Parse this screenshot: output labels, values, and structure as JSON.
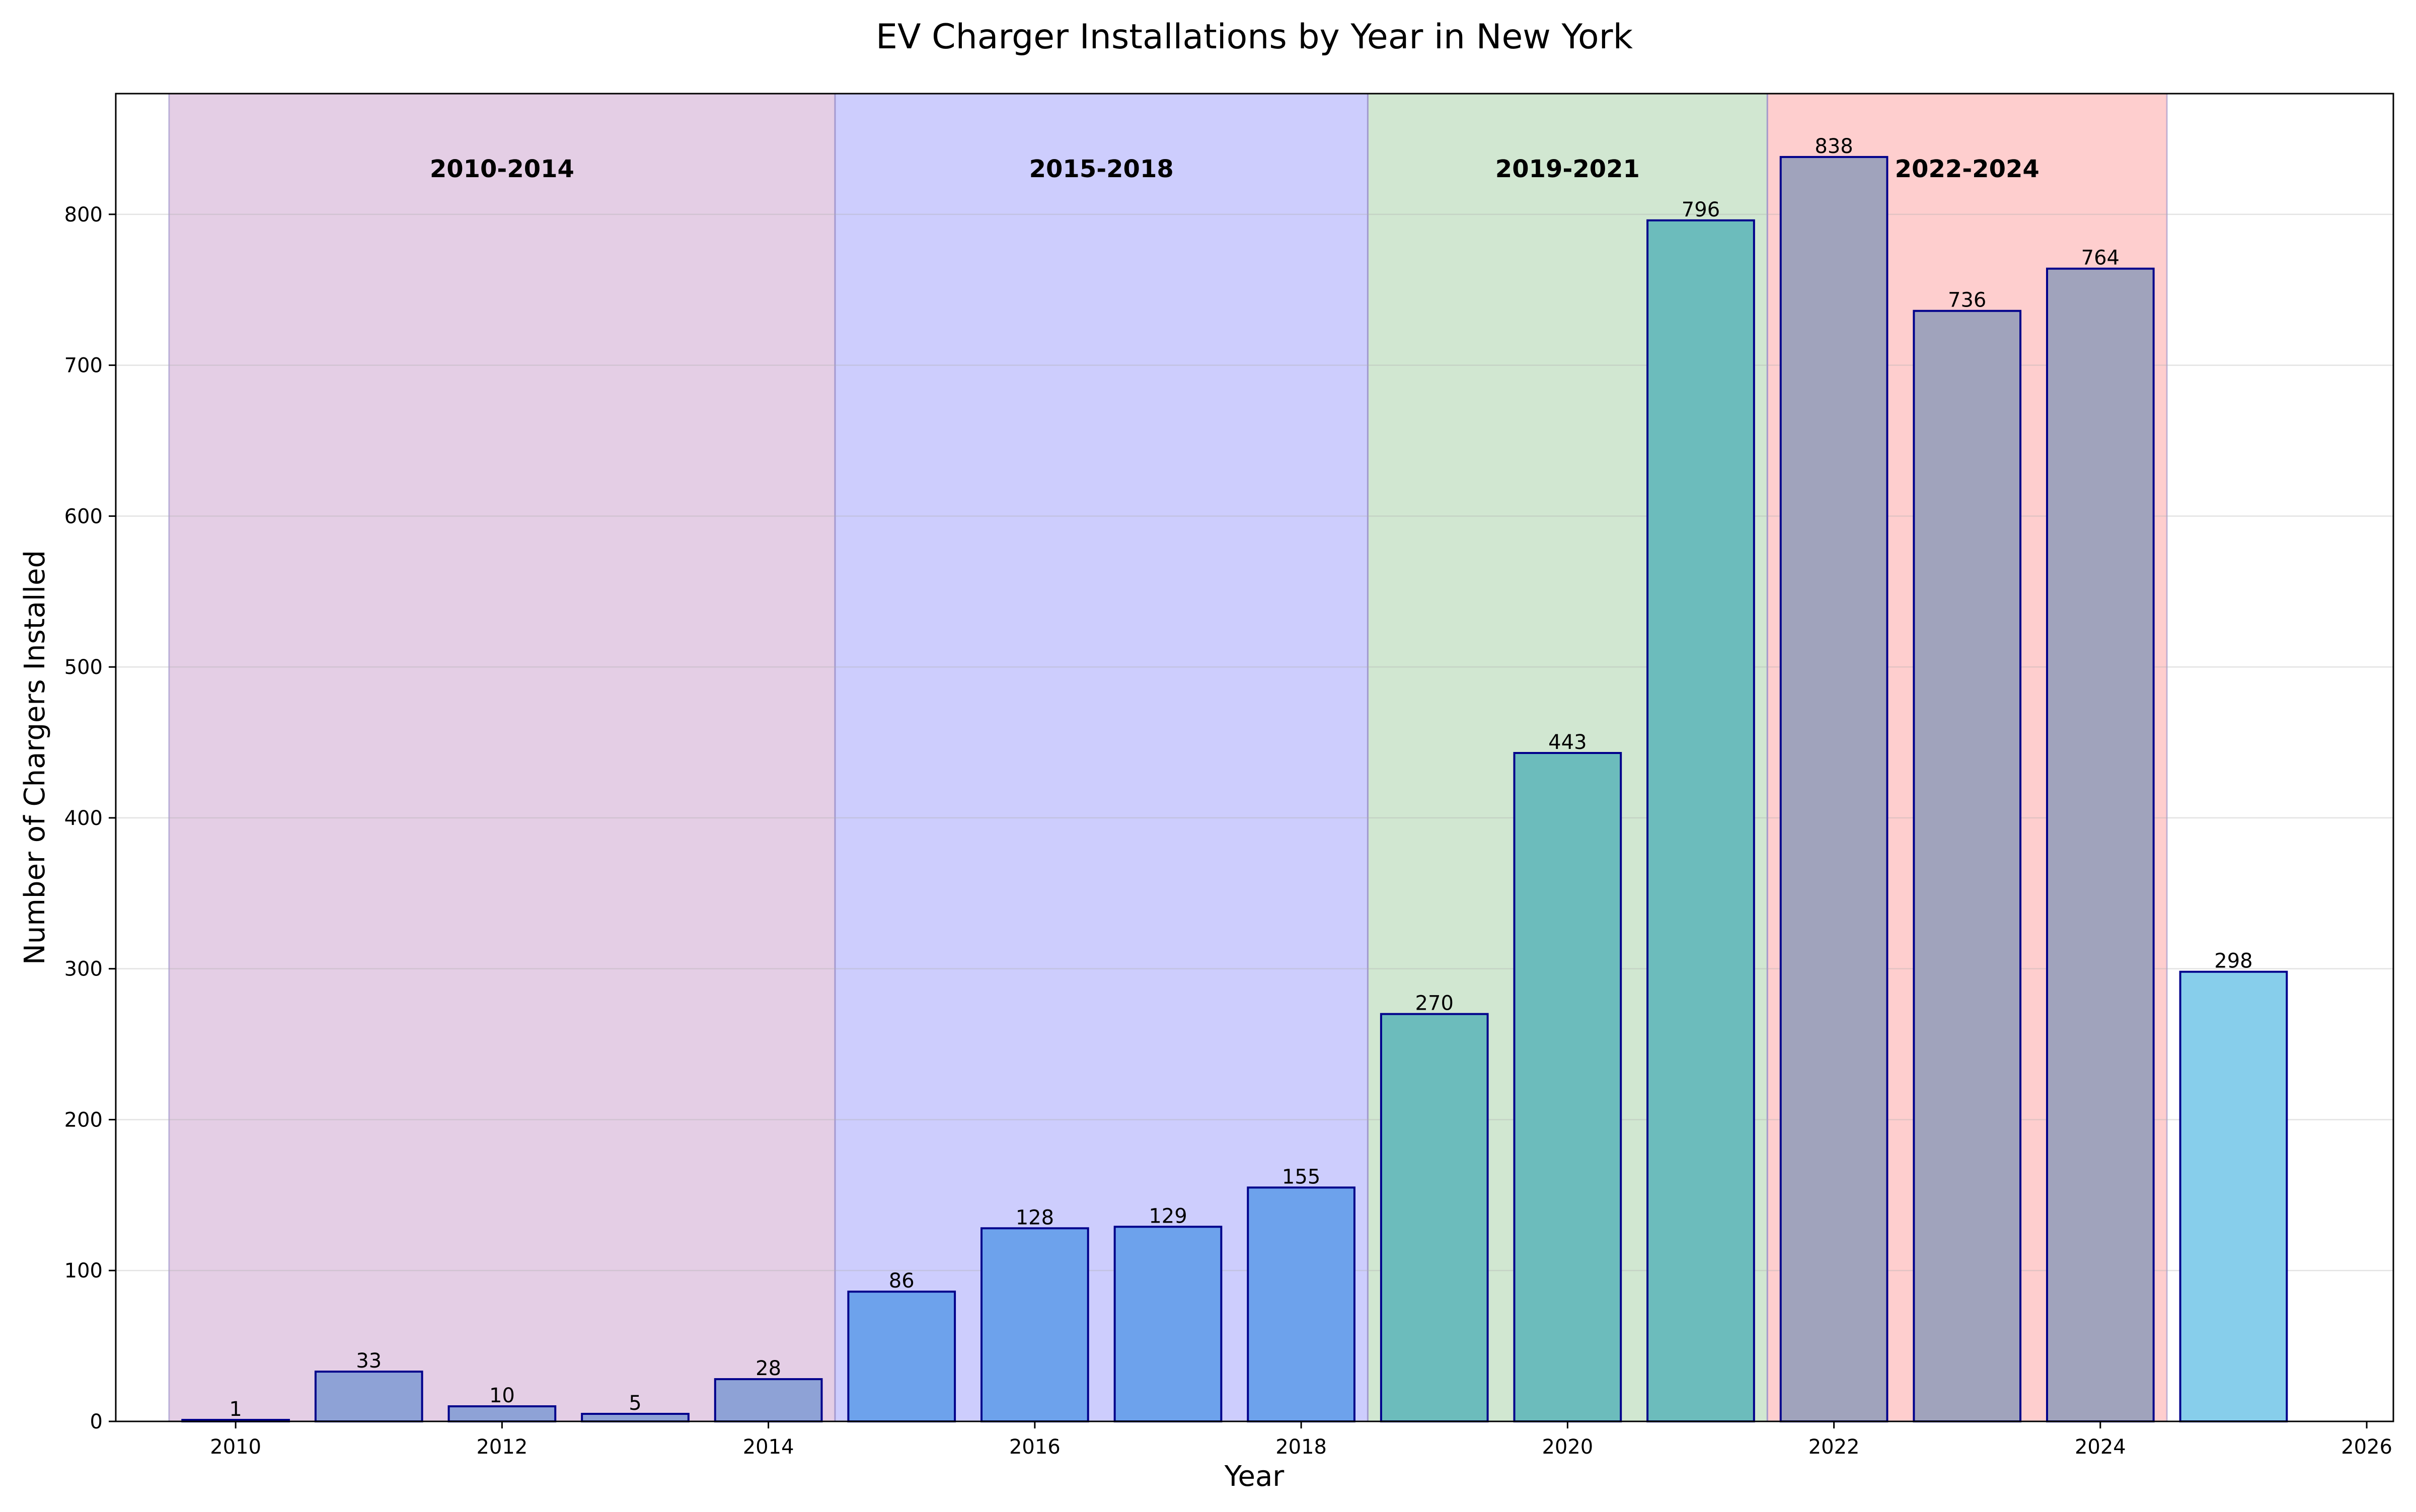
{
  "chart_data": {
    "type": "bar",
    "title": "EV Charger Installations by Year in New York",
    "xlabel": "Year",
    "ylabel": "Number of Chargers Installed",
    "x": [
      2010,
      2011,
      2012,
      2013,
      2014,
      2015,
      2016,
      2017,
      2018,
      2019,
      2020,
      2021,
      2022,
      2023,
      2024,
      2025
    ],
    "values": [
      1,
      33,
      10,
      5,
      28,
      86,
      128,
      129,
      155,
      270,
      443,
      796,
      838,
      736,
      764,
      298
    ],
    "xlim": [
      2009.1,
      2026.2
    ],
    "ylim": [
      0,
      880
    ],
    "xticks": [
      2010,
      2012,
      2014,
      2016,
      2018,
      2020,
      2022,
      2024,
      2026
    ],
    "yticks": [
      0,
      100,
      200,
      300,
      400,
      500,
      600,
      700,
      800
    ],
    "grid": "horizontal",
    "bar_colors": [
      "#8ea2d6",
      "#8ea2d6",
      "#8ea2d6",
      "#8ea2d6",
      "#8ea2d6",
      "#6da2ec",
      "#6da2ec",
      "#6da2ec",
      "#6da2ec",
      "#6cbcbc",
      "#6cbcbc",
      "#6cbcbc",
      "#a0a3bc",
      "#a0a3bc",
      "#a0a3bc",
      "#87ceeb"
    ],
    "bar_edge_color": "#00008b",
    "periods": [
      {
        "label": "2010-2014",
        "start": 2009.5,
        "end": 2014.5,
        "color": "#e3cbe4"
      },
      {
        "label": "2015-2018",
        "start": 2014.5,
        "end": 2018.5,
        "color": "#cacafd"
      },
      {
        "label": "2019-2021",
        "start": 2018.5,
        "end": 2021.5,
        "color": "#cfe6cf"
      },
      {
        "label": "2022-2024",
        "start": 2021.5,
        "end": 2024.5,
        "color": "#fecbcb"
      }
    ]
  }
}
